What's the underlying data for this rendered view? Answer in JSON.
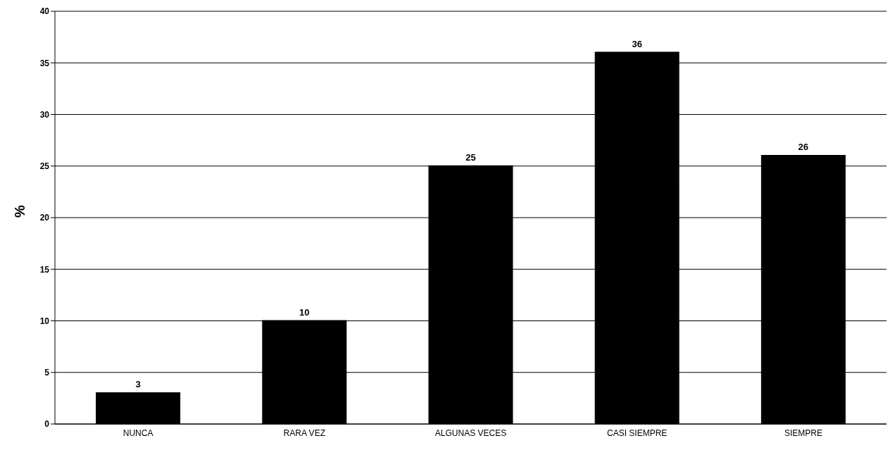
{
  "chart_data": {
    "type": "bar",
    "ylabel": "%",
    "categories": [
      "NUNCA",
      "RARA VEZ",
      "ALGUNAS VECES",
      "CASI SIEMPRE",
      "SIEMPRE"
    ],
    "values": [
      3,
      10,
      25,
      36,
      26
    ],
    "color": "#000000",
    "ylim": [
      0,
      40
    ],
    "yticks": [
      0,
      5,
      10,
      15,
      20,
      25,
      30,
      35,
      40
    ],
    "grid": "y",
    "data_labels": true
  }
}
